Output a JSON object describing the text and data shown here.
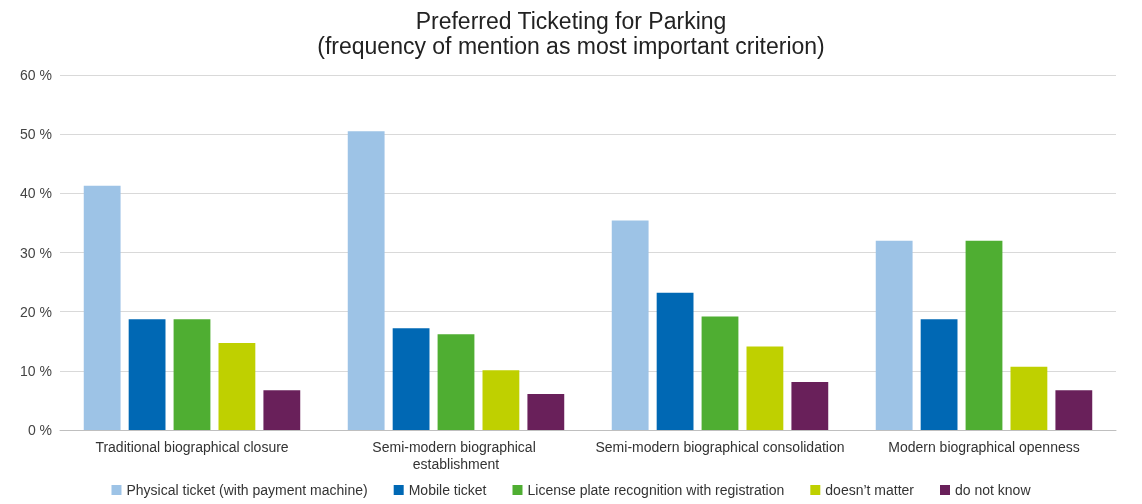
{
  "chart_data": {
    "type": "bar",
    "title": "Preferred Ticketing for Parking",
    "subtitle": "(frequency of mention as most important criterion)",
    "categories": [
      "Traditional biographical closure",
      "Semi-modern biographical establishment",
      "Semi-modern biographical consolidation",
      "Modern biographical openness"
    ],
    "series": [
      {
        "name": "Physical ticket (with payment machine)",
        "color": "#9dc3e6",
        "values": [
          41.3,
          50.5,
          35.4,
          32.0
        ]
      },
      {
        "name": "Mobile ticket",
        "color": "#0068b4",
        "values": [
          18.7,
          17.2,
          23.2,
          18.7
        ]
      },
      {
        "name": "License plate recognition with registration",
        "color": "#4fae32",
        "values": [
          18.7,
          16.2,
          19.2,
          32.0
        ]
      },
      {
        "name": "doesn’t matter",
        "color": "#bfd000",
        "values": [
          14.7,
          10.1,
          14.1,
          10.7
        ]
      },
      {
        "name": "do not know",
        "color": "#69205a",
        "values": [
          6.7,
          6.1,
          8.1,
          6.7
        ]
      }
    ],
    "ylim": [
      0,
      60
    ],
    "yticks": [
      {
        "value": 0,
        "label": "0 %"
      },
      {
        "value": 10,
        "label": "10 %"
      },
      {
        "value": 20,
        "label": "20 %"
      },
      {
        "value": 30,
        "label": "30 %"
      },
      {
        "value": 40,
        "label": "40 %"
      },
      {
        "value": 50,
        "label": "50 %"
      },
      {
        "value": 60,
        "label": "60 %"
      }
    ],
    "grid": "y",
    "legend": "bottom"
  }
}
